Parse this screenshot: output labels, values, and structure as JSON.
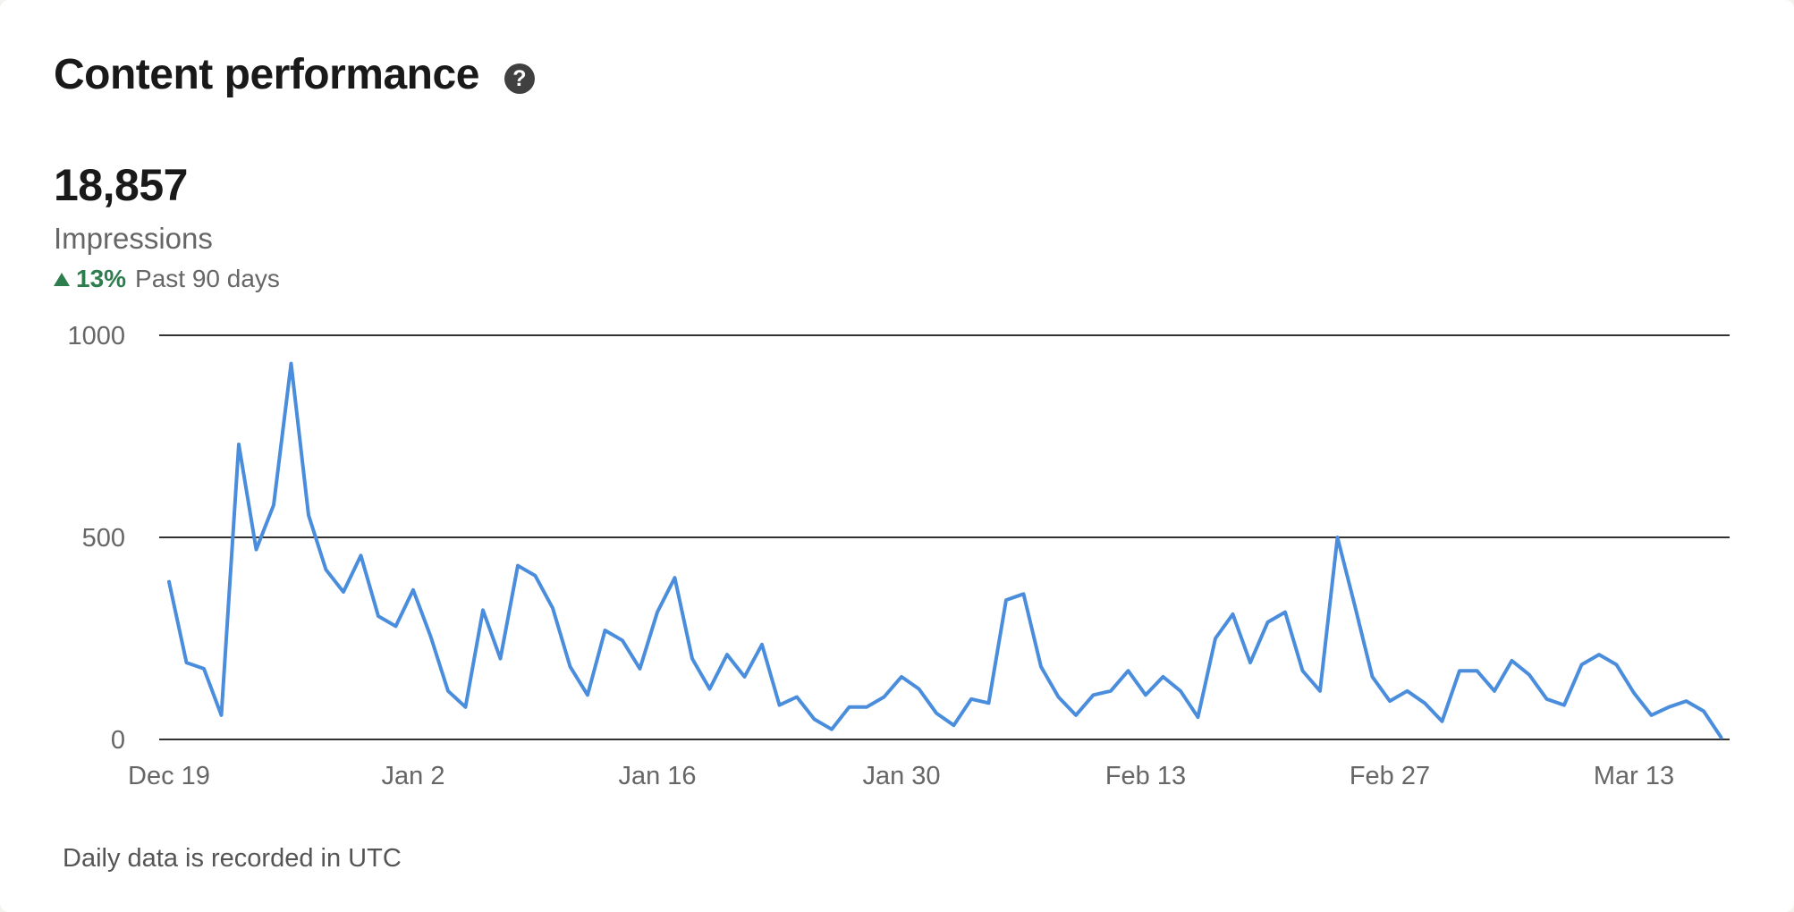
{
  "header": {
    "title": "Content performance",
    "help_icon": "question-circle-icon"
  },
  "summary": {
    "value": "18,857",
    "label": "Impressions",
    "trend_icon": "triangle-up-icon",
    "trend_percent": "13%",
    "trend_period": "Past 90 days"
  },
  "footnote": "Daily data is recorded in UTC",
  "colors": {
    "line": "#4a8ddc",
    "positive": "#2e7d4f",
    "gridline": "#333333"
  },
  "chart_data": {
    "type": "line",
    "title": "",
    "xlabel": "",
    "ylabel": "",
    "ylim": [
      0,
      1000
    ],
    "y_ticks": [
      0,
      500,
      1000
    ],
    "y_tick_labels": [
      "0",
      "500",
      "1000"
    ],
    "x_tick_labels": [
      "Dec 19",
      "Jan 2",
      "Jan 16",
      "Jan 30",
      "Feb 13",
      "Feb 27",
      "Mar 13"
    ],
    "grid": true,
    "legend": "none",
    "x": [
      "Dec 19",
      "Dec 20",
      "Dec 21",
      "Dec 22",
      "Dec 23",
      "Dec 24",
      "Dec 25",
      "Dec 26",
      "Dec 27",
      "Dec 28",
      "Dec 29",
      "Dec 30",
      "Dec 31",
      "Jan 1",
      "Jan 2",
      "Jan 3",
      "Jan 4",
      "Jan 5",
      "Jan 6",
      "Jan 7",
      "Jan 8",
      "Jan 9",
      "Jan 10",
      "Jan 11",
      "Jan 12",
      "Jan 13",
      "Jan 14",
      "Jan 15",
      "Jan 16",
      "Jan 17",
      "Jan 18",
      "Jan 19",
      "Jan 20",
      "Jan 21",
      "Jan 22",
      "Jan 23",
      "Jan 24",
      "Jan 25",
      "Jan 26",
      "Jan 27",
      "Jan 28",
      "Jan 29",
      "Jan 30",
      "Jan 31",
      "Feb 1",
      "Feb 2",
      "Feb 3",
      "Feb 4",
      "Feb 5",
      "Feb 6",
      "Feb 7",
      "Feb 8",
      "Feb 9",
      "Feb 10",
      "Feb 11",
      "Feb 12",
      "Feb 13",
      "Feb 14",
      "Feb 15",
      "Feb 16",
      "Feb 17",
      "Feb 18",
      "Feb 19",
      "Feb 20",
      "Feb 21",
      "Feb 22",
      "Feb 23",
      "Feb 24",
      "Feb 25",
      "Feb 26",
      "Feb 27",
      "Feb 28",
      "Mar 1",
      "Mar 2",
      "Mar 3",
      "Mar 4",
      "Mar 5",
      "Mar 6",
      "Mar 7",
      "Mar 8",
      "Mar 9",
      "Mar 10",
      "Mar 11",
      "Mar 12",
      "Mar 13",
      "Mar 14",
      "Mar 15",
      "Mar 16",
      "Mar 17",
      "Mar 18"
    ],
    "series": [
      {
        "values": [
          390,
          190,
          175,
          60,
          730,
          470,
          580,
          930,
          555,
          420,
          365,
          455,
          305,
          280,
          370,
          255,
          120,
          80,
          320,
          200,
          430,
          405,
          325,
          180,
          110,
          270,
          245,
          175,
          315,
          400,
          200,
          125,
          210,
          155,
          235,
          85,
          105,
          50,
          25,
          80,
          80,
          105,
          155,
          125,
          65,
          35,
          100,
          90,
          345,
          360,
          180,
          105,
          60,
          110,
          120,
          170,
          110,
          155,
          120,
          55,
          250,
          310,
          190,
          290,
          315,
          170,
          120,
          500,
          330,
          155,
          95,
          120,
          90,
          45,
          170,
          170,
          120,
          195,
          160,
          100,
          85,
          185,
          210,
          185,
          115,
          60,
          80,
          95,
          70,
          5
        ]
      }
    ]
  }
}
